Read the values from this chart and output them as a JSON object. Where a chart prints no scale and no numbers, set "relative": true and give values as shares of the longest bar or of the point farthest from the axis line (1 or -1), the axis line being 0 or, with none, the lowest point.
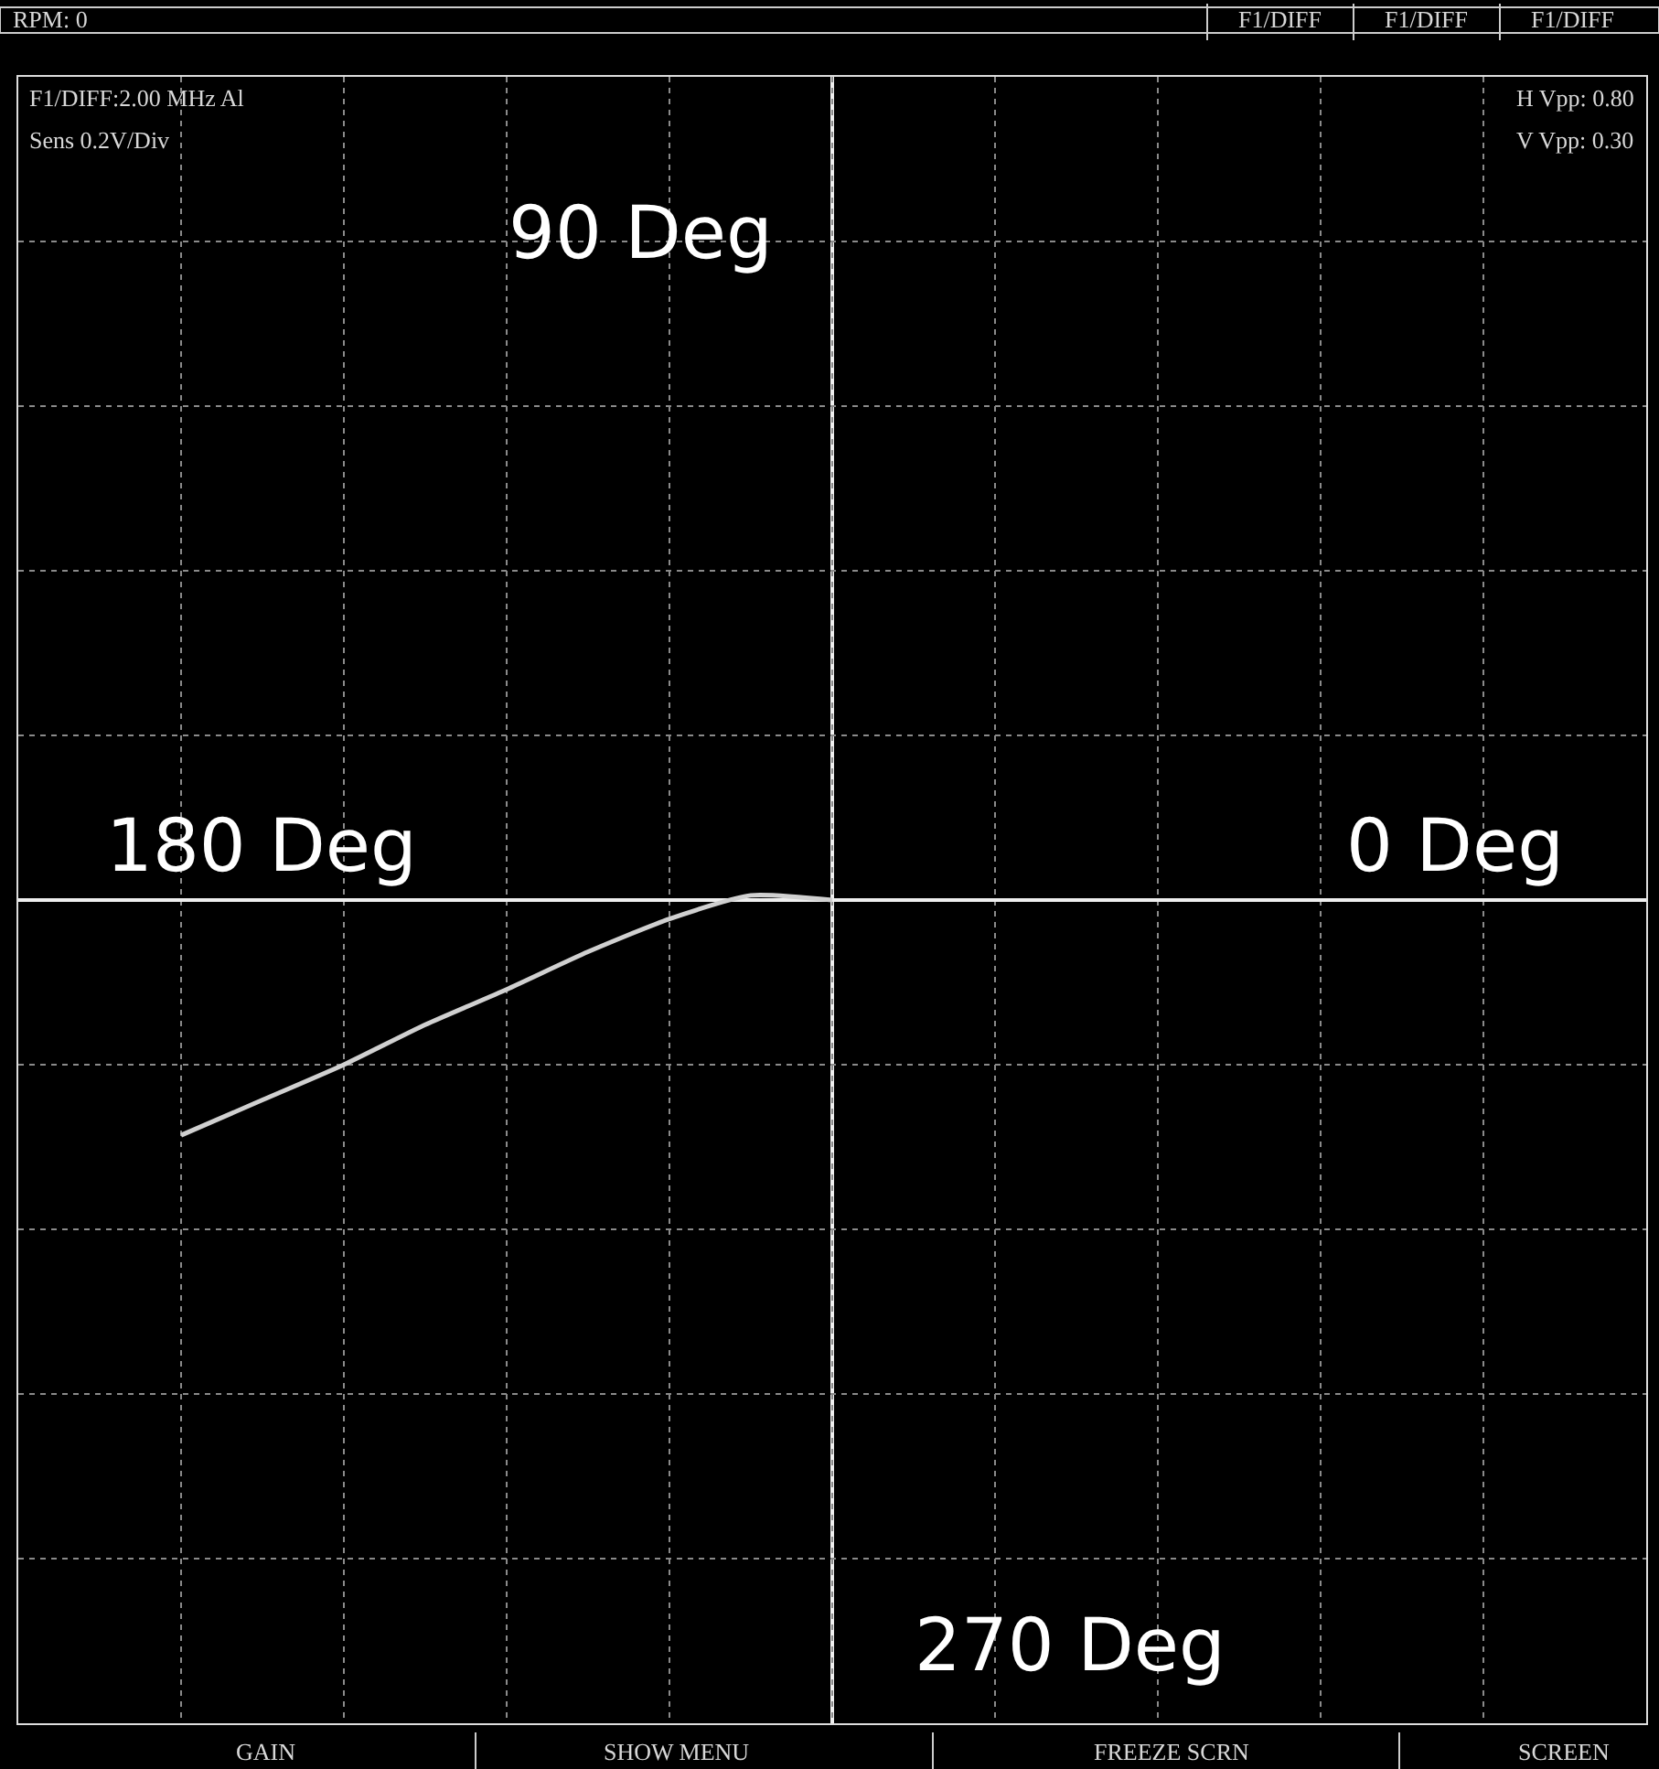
{
  "chart_data": {
    "type": "line",
    "relative": true,
    "categories": [
      null,
      null,
      null,
      null,
      null,
      null,
      null,
      null,
      null,
      null,
      null,
      null,
      null,
      null,
      null,
      null,
      null,
      null,
      null,
      null,
      null
    ],
    "series": [
      {
        "color": "#d0d0d0",
        "values": [
          null,
          null,
          -1,
          -0.85,
          -0.7,
          -0.53,
          -0.38,
          -0.22,
          -0.08,
          0.02,
          0,
          null,
          null,
          null,
          null,
          null,
          null,
          null,
          null,
          null,
          null
        ]
      }
    ],
    "marker": "none",
    "line_style": "solid",
    "grid": true,
    "annotations": [
      "RPM: 0",
      "F1/DIFF",
      "F1/DIFF",
      "F1/DIFF",
      "F1/DIFF:2.00 MHz Al",
      "Sens 0.2V/Div",
      "H Vpp: 0.80",
      "V Vpp: 0.30",
      "90 Deg",
      "180 Deg",
      "0 Deg",
      "270 Deg",
      "GAIN",
      "SHOW MENU",
      "FREEZE SCRN",
      "SCREEN"
    ]
  }
}
